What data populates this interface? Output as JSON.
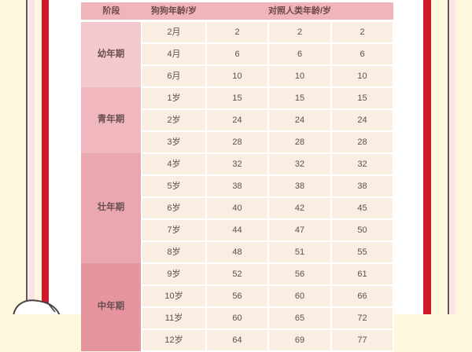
{
  "colors": {
    "page_bg": "#FDF7DE",
    "frame_line": "#635659",
    "frame_pink": "#F8E3E9",
    "accent_red": "#D2192B",
    "card_bg": "#FFFFFF",
    "header_bg": "#F0B4BB",
    "cell_bg": "#FAEDE1",
    "grid_line": "#FFFFFF",
    "header_text": "#6B4A48",
    "cell_text": "#5D4F4C",
    "stage_text": "#684E52",
    "stage_colors": [
      "#F4C9CD",
      "#F0B8BE",
      "#EBA7AF",
      "#E6959F"
    ]
  },
  "chart_data": {
    "type": "table",
    "title": "",
    "header": {
      "stage": "阶段",
      "dog_age": "狗狗年龄/岁",
      "human_age": "对照人类年龄/岁"
    },
    "stage_groups": [
      {
        "stage": "幼年期",
        "rows": [
          {
            "dog_age": "2月",
            "human_ages": [
              "2",
              "2",
              "2"
            ]
          },
          {
            "dog_age": "4月",
            "human_ages": [
              "6",
              "6",
              "6"
            ]
          },
          {
            "dog_age": "6月",
            "human_ages": [
              "10",
              "10",
              "10"
            ]
          }
        ]
      },
      {
        "stage": "青年期",
        "rows": [
          {
            "dog_age": "1岁",
            "human_ages": [
              "15",
              "15",
              "15"
            ]
          },
          {
            "dog_age": "2岁",
            "human_ages": [
              "24",
              "24",
              "24"
            ]
          },
          {
            "dog_age": "3岁",
            "human_ages": [
              "28",
              "28",
              "28"
            ]
          }
        ]
      },
      {
        "stage": "壮年期",
        "rows": [
          {
            "dog_age": "4岁",
            "human_ages": [
              "32",
              "32",
              "32"
            ]
          },
          {
            "dog_age": "5岁",
            "human_ages": [
              "38",
              "38",
              "38"
            ]
          },
          {
            "dog_age": "6岁",
            "human_ages": [
              "40",
              "42",
              "45"
            ]
          },
          {
            "dog_age": "7岁",
            "human_ages": [
              "44",
              "47",
              "50"
            ]
          },
          {
            "dog_age": "8岁",
            "human_ages": [
              "48",
              "51",
              "55"
            ]
          }
        ]
      },
      {
        "stage": "中年期",
        "rows": [
          {
            "dog_age": "9岁",
            "human_ages": [
              "52",
              "56",
              "61"
            ]
          },
          {
            "dog_age": "10岁",
            "human_ages": [
              "56",
              "60",
              "66"
            ]
          },
          {
            "dog_age": "11岁",
            "human_ages": [
              "60",
              "65",
              "72"
            ]
          },
          {
            "dog_age": "12岁",
            "human_ages": [
              "64",
              "69",
              "77"
            ]
          }
        ]
      }
    ]
  }
}
